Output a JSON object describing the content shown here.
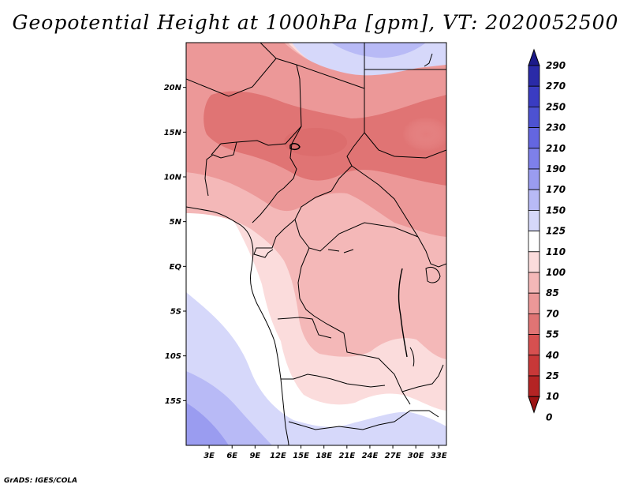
{
  "title": "Geopotential Height at 1000hPa [gpm], VT: 2020052500",
  "credit": "GrADS: IGES/COLA",
  "map": {
    "lon_range": [
      0,
      34
    ],
    "lat_range": [
      -20,
      25
    ],
    "x_ticks": [
      "3E",
      "6E",
      "9E",
      "12E",
      "15E",
      "18E",
      "21E",
      "24E",
      "27E",
      "30E",
      "33E"
    ],
    "x_tick_values": [
      3,
      6,
      9,
      12,
      15,
      18,
      21,
      24,
      27,
      30,
      33
    ],
    "y_ticks": [
      "20N",
      "15N",
      "10N",
      "5N",
      "EQ",
      "5S",
      "10S",
      "15S"
    ],
    "y_tick_values": [
      20,
      15,
      10,
      5,
      0,
      -5,
      -10,
      -15
    ]
  },
  "colorbar": {
    "labels": [
      "290",
      "270",
      "250",
      "230",
      "210",
      "190",
      "170",
      "150",
      "125",
      "110",
      "100",
      "85",
      "70",
      "55",
      "40",
      "25",
      "10",
      "0"
    ],
    "colors": [
      "#1c1a8a",
      "#2a2aa8",
      "#3a3cc2",
      "#4d52d2",
      "#6466e0",
      "#7e80ea",
      "#9a9cf0",
      "#b8baf6",
      "#d6d8fa",
      "#ffffff",
      "#fbdcdc",
      "#f4b8b8",
      "#ec9898",
      "#e07474",
      "#d65050",
      "#c83838",
      "#b42424",
      "#9c1414"
    ]
  }
}
